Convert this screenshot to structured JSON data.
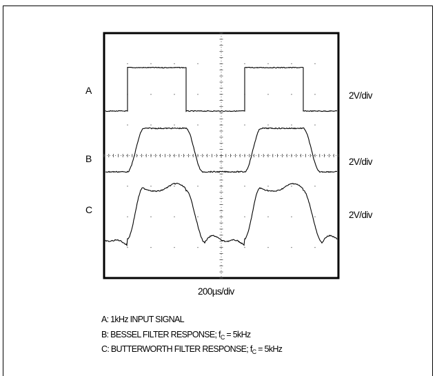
{
  "chart_data": {
    "type": "line",
    "title": "",
    "xlabel": "200µs/div",
    "x_divisions": 10,
    "y_divisions": 8,
    "time_per_div_us": 200,
    "series": [
      {
        "name": "A",
        "scale": "2V/div",
        "shape": "square"
      },
      {
        "name": "B",
        "scale": "2V/div",
        "shape": "bessel"
      },
      {
        "name": "C",
        "scale": "2V/div",
        "shape": "butterworth"
      }
    ],
    "grid": "dotted",
    "line_color": "#000000"
  },
  "legend": {
    "line_a": "A: 1kHz INPUT SIGNAL",
    "line_b_text": "B: BESSEL FILTER RESPONSE; f",
    "line_b_sub": "C",
    "line_b_end": " = 5kHz",
    "line_c_text": "C: BUTTERWORTH FILTER RESPONSE; f",
    "line_c_sub": "C",
    "line_c_end": " = 5kHz"
  }
}
